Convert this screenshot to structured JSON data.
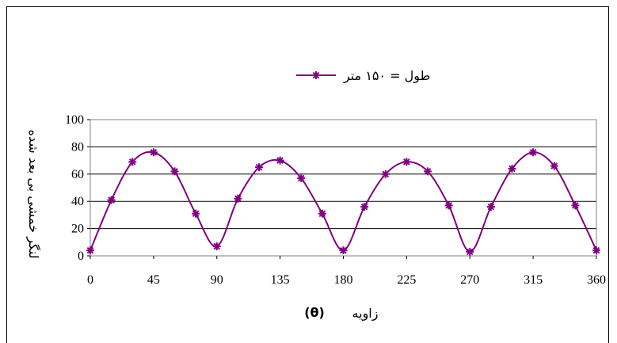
{
  "chart_data": {
    "type": "line",
    "legend": "طول = ۱۵۰ متر",
    "legend_position": "top-center",
    "ylabel": "لنگر خمشی بی بعد شده",
    "xlabel": "زاویه",
    "xlabel_symbol": "(θ)",
    "xlim": [
      0,
      360
    ],
    "ylim": [
      0,
      100
    ],
    "xticks": [
      0,
      45,
      90,
      135,
      180,
      225,
      270,
      315,
      360
    ],
    "yticks": [
      0,
      20,
      40,
      60,
      80,
      100
    ],
    "grid": "horizontal",
    "series": [
      {
        "name": "طول = ۱۵۰ متر",
        "color": "#800080",
        "marker": "star",
        "x": [
          0,
          15,
          30,
          45,
          60,
          75,
          90,
          105,
          120,
          135,
          150,
          165,
          180,
          195,
          210,
          225,
          240,
          255,
          270,
          285,
          300,
          315,
          330,
          345,
          360
        ],
        "y": [
          4,
          41,
          69,
          76,
          62,
          31,
          7,
          42,
          65,
          70,
          57,
          31,
          4,
          36,
          60,
          69,
          62,
          37,
          3,
          36,
          64,
          76,
          66,
          37,
          4
        ]
      }
    ]
  }
}
